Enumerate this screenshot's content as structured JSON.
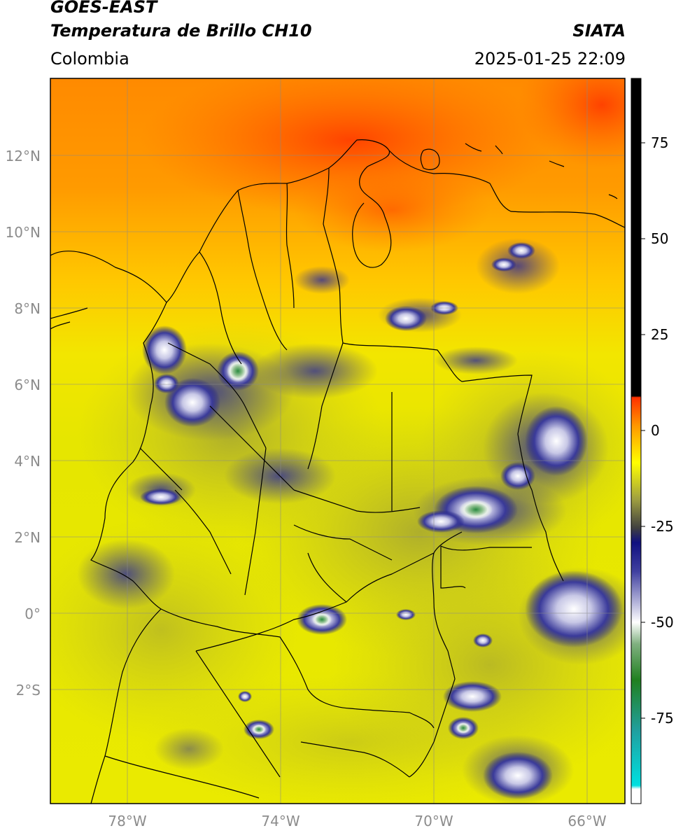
{
  "header": {
    "satellite": "GOES-EAST",
    "product": "Temperatura de Brillo CH10",
    "agency": "SIATA",
    "region": "Colombia",
    "datetime": "2025-01-25 22:09"
  },
  "map": {
    "lon_range": [
      -80,
      -65
    ],
    "lat_range": [
      -5,
      14
    ],
    "lat_labels": [
      "12°N",
      "10°N",
      "8°N",
      "6°N",
      "4°N",
      "2°N",
      "0°",
      "2°S"
    ],
    "lon_labels": [
      "78°W",
      "74°W",
      "70°W",
      "66°W"
    ]
  },
  "colorbar": {
    "labels": [
      "75",
      "50",
      "25",
      "0",
      "-25",
      "-50",
      "-75"
    ]
  }
}
